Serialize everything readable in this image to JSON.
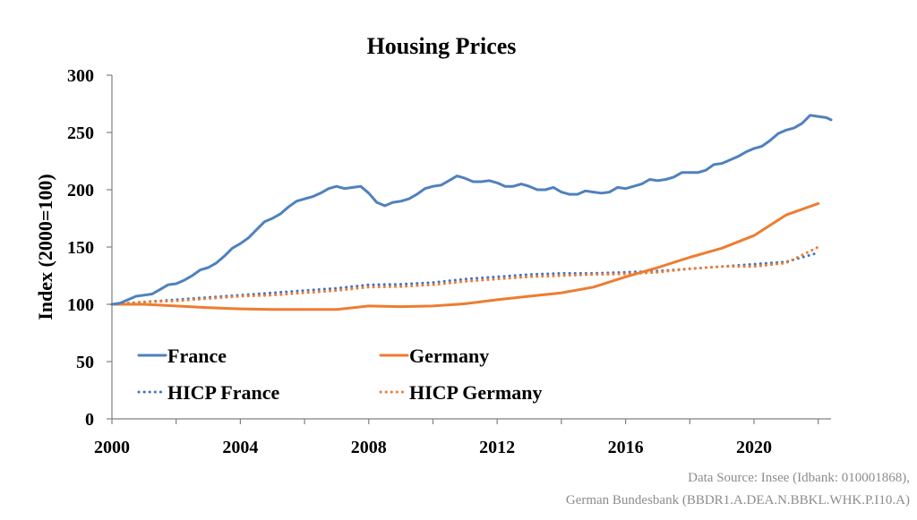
{
  "chart_data": {
    "type": "line",
    "title": "Housing Prices",
    "xlabel": "",
    "ylabel": "Index (2000=100)",
    "xlim": [
      2000,
      2022.4
    ],
    "ylim": [
      0,
      300
    ],
    "x_ticks": [
      "2000",
      "2004",
      "2008",
      "2012",
      "2016",
      "2020"
    ],
    "y_ticks": [
      "0",
      "50",
      "100",
      "150",
      "200",
      "250",
      "300"
    ],
    "grid": false,
    "legend": "bottom-inside",
    "series": [
      {
        "name": "France",
        "color": "#4f81bd",
        "style": "solid",
        "x": [
          2000,
          2000.25,
          2000.5,
          2000.75,
          2001,
          2001.25,
          2001.5,
          2001.75,
          2002,
          2002.25,
          2002.5,
          2002.75,
          2003,
          2003.25,
          2003.5,
          2003.75,
          2004,
          2004.25,
          2004.5,
          2004.75,
          2005,
          2005.25,
          2005.5,
          2005.75,
          2006,
          2006.25,
          2006.5,
          2006.75,
          2007,
          2007.25,
          2007.5,
          2007.75,
          2008,
          2008.25,
          2008.5,
          2008.75,
          2009,
          2009.25,
          2009.5,
          2009.75,
          2010,
          2010.25,
          2010.5,
          2010.75,
          2011,
          2011.25,
          2011.5,
          2011.75,
          2012,
          2012.25,
          2012.5,
          2012.75,
          2013,
          2013.25,
          2013.5,
          2013.75,
          2014,
          2014.25,
          2014.5,
          2014.75,
          2015,
          2015.25,
          2015.5,
          2015.75,
          2016,
          2016.25,
          2016.5,
          2016.75,
          2017,
          2017.25,
          2017.5,
          2017.75,
          2018,
          2018.25,
          2018.5,
          2018.75,
          2019,
          2019.25,
          2019.5,
          2019.75,
          2020,
          2020.25,
          2020.5,
          2020.75,
          2021,
          2021.25,
          2021.5,
          2021.75,
          2022,
          2022.25,
          2022.4
        ],
        "y": [
          100,
          101,
          104,
          107,
          108,
          109,
          113,
          117,
          118,
          121,
          125,
          130,
          132,
          136,
          142,
          149,
          153,
          158,
          165,
          172,
          175,
          179,
          185,
          190,
          192,
          194,
          197,
          201,
          203,
          201,
          202,
          203,
          197,
          189,
          186,
          189,
          190,
          192,
          196,
          201,
          203,
          204,
          208,
          212,
          210,
          207,
          207,
          208,
          206,
          203,
          203,
          205,
          203,
          200,
          200,
          202,
          198,
          196,
          196,
          199,
          198,
          197,
          198,
          202,
          201,
          203,
          205,
          209,
          208,
          209,
          211,
          215,
          215,
          215,
          217,
          222,
          223,
          226,
          229,
          233,
          236,
          238,
          243,
          249,
          252,
          254,
          258,
          265,
          264,
          263,
          261
        ]
      },
      {
        "name": "Germany",
        "color": "#ed7d31",
        "style": "solid",
        "x": [
          2000,
          2001,
          2002,
          2003,
          2004,
          2005,
          2006,
          2007,
          2008,
          2009,
          2010,
          2011,
          2012,
          2013,
          2014,
          2015,
          2016,
          2017,
          2018,
          2019,
          2020,
          2021,
          2022
        ],
        "y": [
          100,
          100,
          98.5,
          97,
          96,
          95.5,
          95.5,
          95.5,
          98.5,
          98,
          98.5,
          100.5,
          104,
          107,
          110,
          115,
          124,
          132,
          141,
          149,
          160,
          178,
          188
        ]
      },
      {
        "name": "HICP France",
        "color": "#4472c4",
        "style": "dotted",
        "x": [
          2000,
          2001,
          2002,
          2003,
          2004,
          2005,
          2006,
          2007,
          2008,
          2009,
          2010,
          2011,
          2012,
          2013,
          2014,
          2015,
          2016,
          2017,
          2018,
          2019,
          2020,
          2021,
          2022
        ],
        "y": [
          100,
          102,
          104,
          106,
          108,
          110,
          112,
          114,
          117,
          117.5,
          119,
          122,
          124,
          126,
          127,
          127,
          128,
          129,
          131,
          133,
          135,
          137,
          145
        ]
      },
      {
        "name": "HICP Germany",
        "color": "#ed7d31",
        "style": "dotted",
        "x": [
          2000,
          2001,
          2002,
          2003,
          2004,
          2005,
          2006,
          2007,
          2008,
          2009,
          2010,
          2011,
          2012,
          2013,
          2014,
          2015,
          2016,
          2017,
          2018,
          2019,
          2020,
          2021,
          2022
        ],
        "y": [
          100,
          102,
          103,
          105,
          107,
          108,
          110,
          112,
          115,
          115.5,
          117,
          120,
          122,
          124,
          125,
          126,
          126.5,
          128,
          131,
          133,
          133,
          136,
          150
        ]
      }
    ]
  },
  "source": {
    "line1": "Data Source: Insee (Idbank: 010001868),",
    "line2": "German Bundesbank (BBDR1.A.DEA.N.BBKL.WHK.P.I10.A)"
  }
}
